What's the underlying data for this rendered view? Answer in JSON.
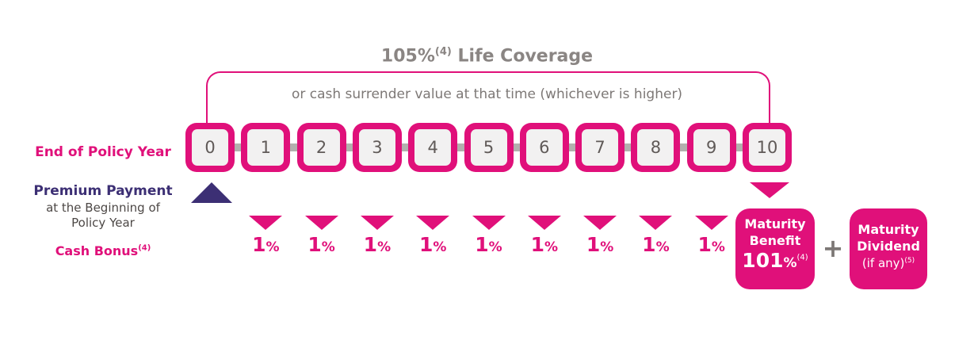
{
  "coverage": {
    "title": "105%",
    "title_sup": "(4)",
    "title_suffix": " Life Coverage",
    "subtitle": "or cash surrender value at that time (whichever is higher)"
  },
  "labels": {
    "end_of_policy_year": "End of Policy Year",
    "premium_payment": "Premium Payment",
    "premium_sub_line1": "at the Beginning of",
    "premium_sub_line2": "Policy Year",
    "cash_bonus": "Cash Bonus",
    "cash_bonus_sup": "(4)"
  },
  "years": [
    "0",
    "1",
    "2",
    "3",
    "4",
    "5",
    "6",
    "7",
    "8",
    "9",
    "10"
  ],
  "cash_bonus": [
    {
      "num": "1",
      "sym": "%"
    },
    {
      "num": "1",
      "sym": "%"
    },
    {
      "num": "1",
      "sym": "%"
    },
    {
      "num": "1",
      "sym": "%"
    },
    {
      "num": "1",
      "sym": "%"
    },
    {
      "num": "1",
      "sym": "%"
    },
    {
      "num": "1",
      "sym": "%"
    },
    {
      "num": "1",
      "sym": "%"
    },
    {
      "num": "1",
      "sym": "%"
    }
  ],
  "maturity_benefit": {
    "line1": "Maturity",
    "line2": "Benefit",
    "value": "101",
    "value_sym": "%",
    "value_sup": "(4)"
  },
  "plus": "+",
  "maturity_dividend": {
    "line1": "Maturity",
    "line2": "Dividend",
    "line3": "(if any)",
    "line3_sup": "(5)"
  },
  "colors": {
    "accent": "#e0107a",
    "premium": "#3c2f74",
    "grey_text": "#7d7876",
    "track": "#b3b0ae"
  }
}
